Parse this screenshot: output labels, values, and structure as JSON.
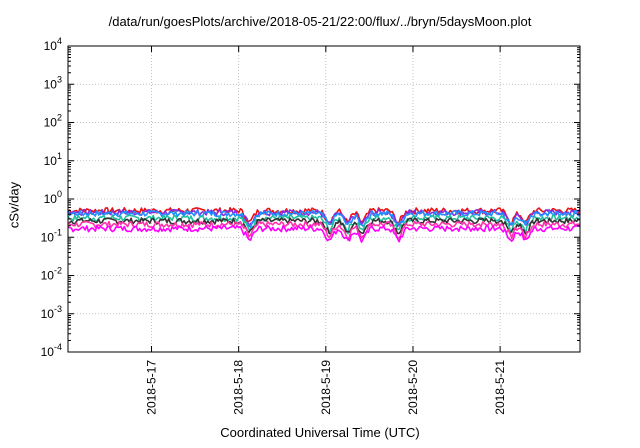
{
  "chart_data": {
    "type": "line",
    "title": "/data/run/goesPlots/archive/2018-05-21/22:00/flux/../bryn/5daysMoon.plot",
    "xlabel": "Coordinated Universal Time (UTC)",
    "ylabel": "cSv/day",
    "yscale": "log",
    "ylim": [
      0.0001,
      10000
    ],
    "grid": true,
    "xlim": [
      "2018-05-16 01:00",
      "2018-05-21 22:00"
    ],
    "x_ticks": [
      "2018-5-17",
      "2018-5-18",
      "2018-5-19",
      "2018-5-20",
      "2018-5-21"
    ],
    "y_ticks": [
      {
        "base": "10",
        "exp": "-4",
        "value": 0.0001
      },
      {
        "base": "10",
        "exp": "-3",
        "value": 0.001
      },
      {
        "base": "10",
        "exp": "-2",
        "value": 0.01
      },
      {
        "base": "10",
        "exp": "-1",
        "value": 0.1
      },
      {
        "base": "10",
        "exp": "0",
        "value": 1
      },
      {
        "base": "10",
        "exp": "1",
        "value": 10
      },
      {
        "base": "10",
        "exp": "2",
        "value": 100
      },
      {
        "base": "10",
        "exp": "3",
        "value": 1000
      },
      {
        "base": "10",
        "exp": "4",
        "value": 10000
      }
    ],
    "series": [
      {
        "color": "#ee1111",
        "level": 0.5
      },
      {
        "color": "#8a2be2",
        "level": 0.45
      },
      {
        "color": "#1e90ff",
        "level": 0.42
      },
      {
        "color": "#20c0a0",
        "level": 0.32
      },
      {
        "color": "#333333",
        "level": 0.27
      },
      {
        "color": "#ff33aa",
        "level": 0.22
      },
      {
        "color": "#ff00ff",
        "level": 0.17
      }
    ],
    "dips": [
      "2018-05-18 03:00",
      "2018-05-19 01:00",
      "2018-05-19 06:00",
      "2018-05-19 10:00",
      "2018-05-19 20:00",
      "2018-05-21 03:00",
      "2018-05-21 07:00"
    ]
  }
}
